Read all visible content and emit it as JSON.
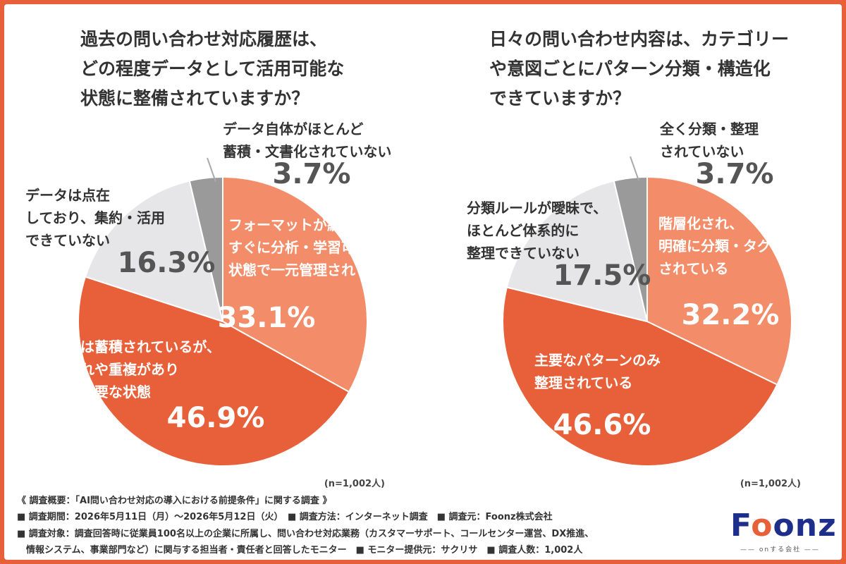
{
  "chart_data": [
    {
      "type": "pie",
      "title_lines": [
        "過去の問い合わせ対応履歴は、",
        "どの程度データとして活用可能な",
        "状態に整備されていますか？"
      ],
      "slices": [
        {
          "label_lines": [
            "フォーマットが統一され、",
            "すぐに分析・学習可能な",
            "状態で一元管理されている"
          ],
          "value": 33.1,
          "value_label": "33.1%",
          "color": "#f38c68"
        },
        {
          "label_lines": [
            "データは蓄積されているが、",
            "表記揺れや重複があり",
            "整理が必要な状態"
          ],
          "value": 46.9,
          "value_label": "46.9%",
          "color": "#e8603a"
        },
        {
          "label_lines": [
            "データは点在",
            "しており、集約・活用",
            "できていない"
          ],
          "value": 16.3,
          "value_label": "16.3%",
          "color": "#e6e6e8"
        },
        {
          "label_lines": [
            "データ自体がほとんど",
            "蓄積・文書化されていない"
          ],
          "value": 3.7,
          "value_label": "3.7%",
          "color": "#9a9a9a"
        }
      ],
      "n_label": "(n=1,002人)"
    },
    {
      "type": "pie",
      "title_lines": [
        "日々の問い合わせ内容は、カテゴリー",
        "や意図ごとにパターン分類・構造化",
        "できていますか？"
      ],
      "slices": [
        {
          "label_lines": [
            "階層化され、",
            "明確に分類・タグ付け",
            "されている"
          ],
          "value": 32.2,
          "value_label": "32.2%",
          "color": "#f38c68"
        },
        {
          "label_lines": [
            "主要なパターンのみ",
            "整理されている"
          ],
          "value": 46.6,
          "value_label": "46.6%",
          "color": "#e8603a"
        },
        {
          "label_lines": [
            "分類ルールが曖昧で、",
            "ほとんど体系的に",
            "整理できていない"
          ],
          "value": 17.5,
          "value_label": "17.5%",
          "color": "#e6e6e8"
        },
        {
          "label_lines": [
            "全く分類・整理",
            "されていない"
          ],
          "value": 3.7,
          "value_label": "3.7%",
          "color": "#9a9a9a"
        }
      ],
      "n_label": "(n=1,002人)"
    }
  ],
  "footer": {
    "summary": "《 調査概要：「AI問い合わせ対応の導入における前提条件」に関する調査 》",
    "line2": "■ 調査期間：2026年5月11日（月）〜2026年5月12日（火）　■ 調査方法：インターネット調査　■ 調査元：Foonz株式会社",
    "line3": "■ 調査対象：調査回答時に従業員100名以上の企業に所属し、問い合わせ対応業務（カスタマーサポート、コールセンター運営、DX推進、",
    "line4": "　情報システム、事業部門など）に関与する担当者・責任者と回答したモニター　■ モニター提供元：サクリサ　■ 調査人数：1,002人"
  },
  "logo": {
    "text_pre": "F",
    "text_o": "o",
    "text_post": "onz",
    "tagline": "—— onする会社 ——"
  }
}
